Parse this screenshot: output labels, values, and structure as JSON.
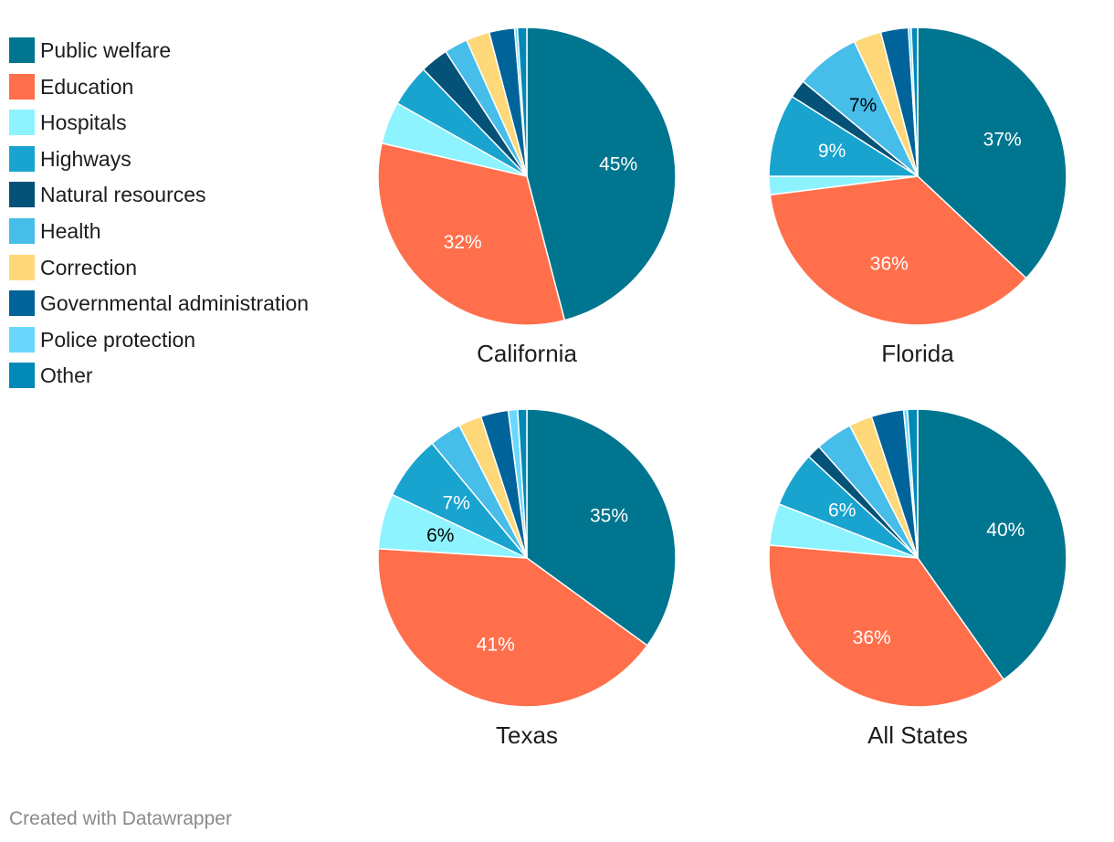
{
  "chart_data": {
    "type": "pie",
    "categories": [
      "Public welfare",
      "Education",
      "Hospitals",
      "Highways",
      "Natural resources",
      "Health",
      "Correction",
      "Governmental administration",
      "Police protection",
      "Other"
    ],
    "colors": [
      "#00758f",
      "#ff6f4b",
      "#8df3fe",
      "#19a3cf",
      "#045277",
      "#47bde9",
      "#fed879",
      "#00649a",
      "#6ad8fd",
      "#0089b7"
    ],
    "label_colors": [
      "#ffffff",
      "#ffffff",
      "#000000",
      "#ffffff",
      "#ffffff",
      "#000000",
      "#000000",
      "#ffffff",
      "#000000",
      "#ffffff"
    ],
    "charts": [
      {
        "title": "California",
        "values": [
          45,
          32,
          4.5,
          4.5,
          3,
          2.5,
          2.5,
          2.7,
          0.3,
          1
        ],
        "labels": [
          "45%",
          "32%",
          "",
          "",
          "",
          "",
          "",
          "",
          "",
          ""
        ]
      },
      {
        "title": "Florida",
        "values": [
          37,
          36,
          2,
          9,
          2,
          7,
          3,
          3,
          0.3,
          0.7
        ],
        "labels": [
          "37%",
          "36%",
          "",
          "9%",
          "",
          "7%",
          "",
          "",
          "",
          ""
        ]
      },
      {
        "title": "Texas",
        "values": [
          35,
          41,
          6,
          7,
          0,
          3.5,
          2.5,
          3,
          1,
          1
        ],
        "labels": [
          "35%",
          "41%",
          "6%",
          "7%",
          "",
          "",
          "",
          "",
          "",
          ""
        ]
      },
      {
        "title": "All States",
        "values": [
          40,
          36,
          4.5,
          6,
          1.5,
          4,
          2.5,
          3.5,
          0.4,
          1.1
        ],
        "labels": [
          "40%",
          "36%",
          "",
          "6%",
          "",
          "",
          "",
          "",
          "",
          ""
        ]
      }
    ]
  },
  "footer": {
    "credit": "Created with Datawrapper"
  }
}
